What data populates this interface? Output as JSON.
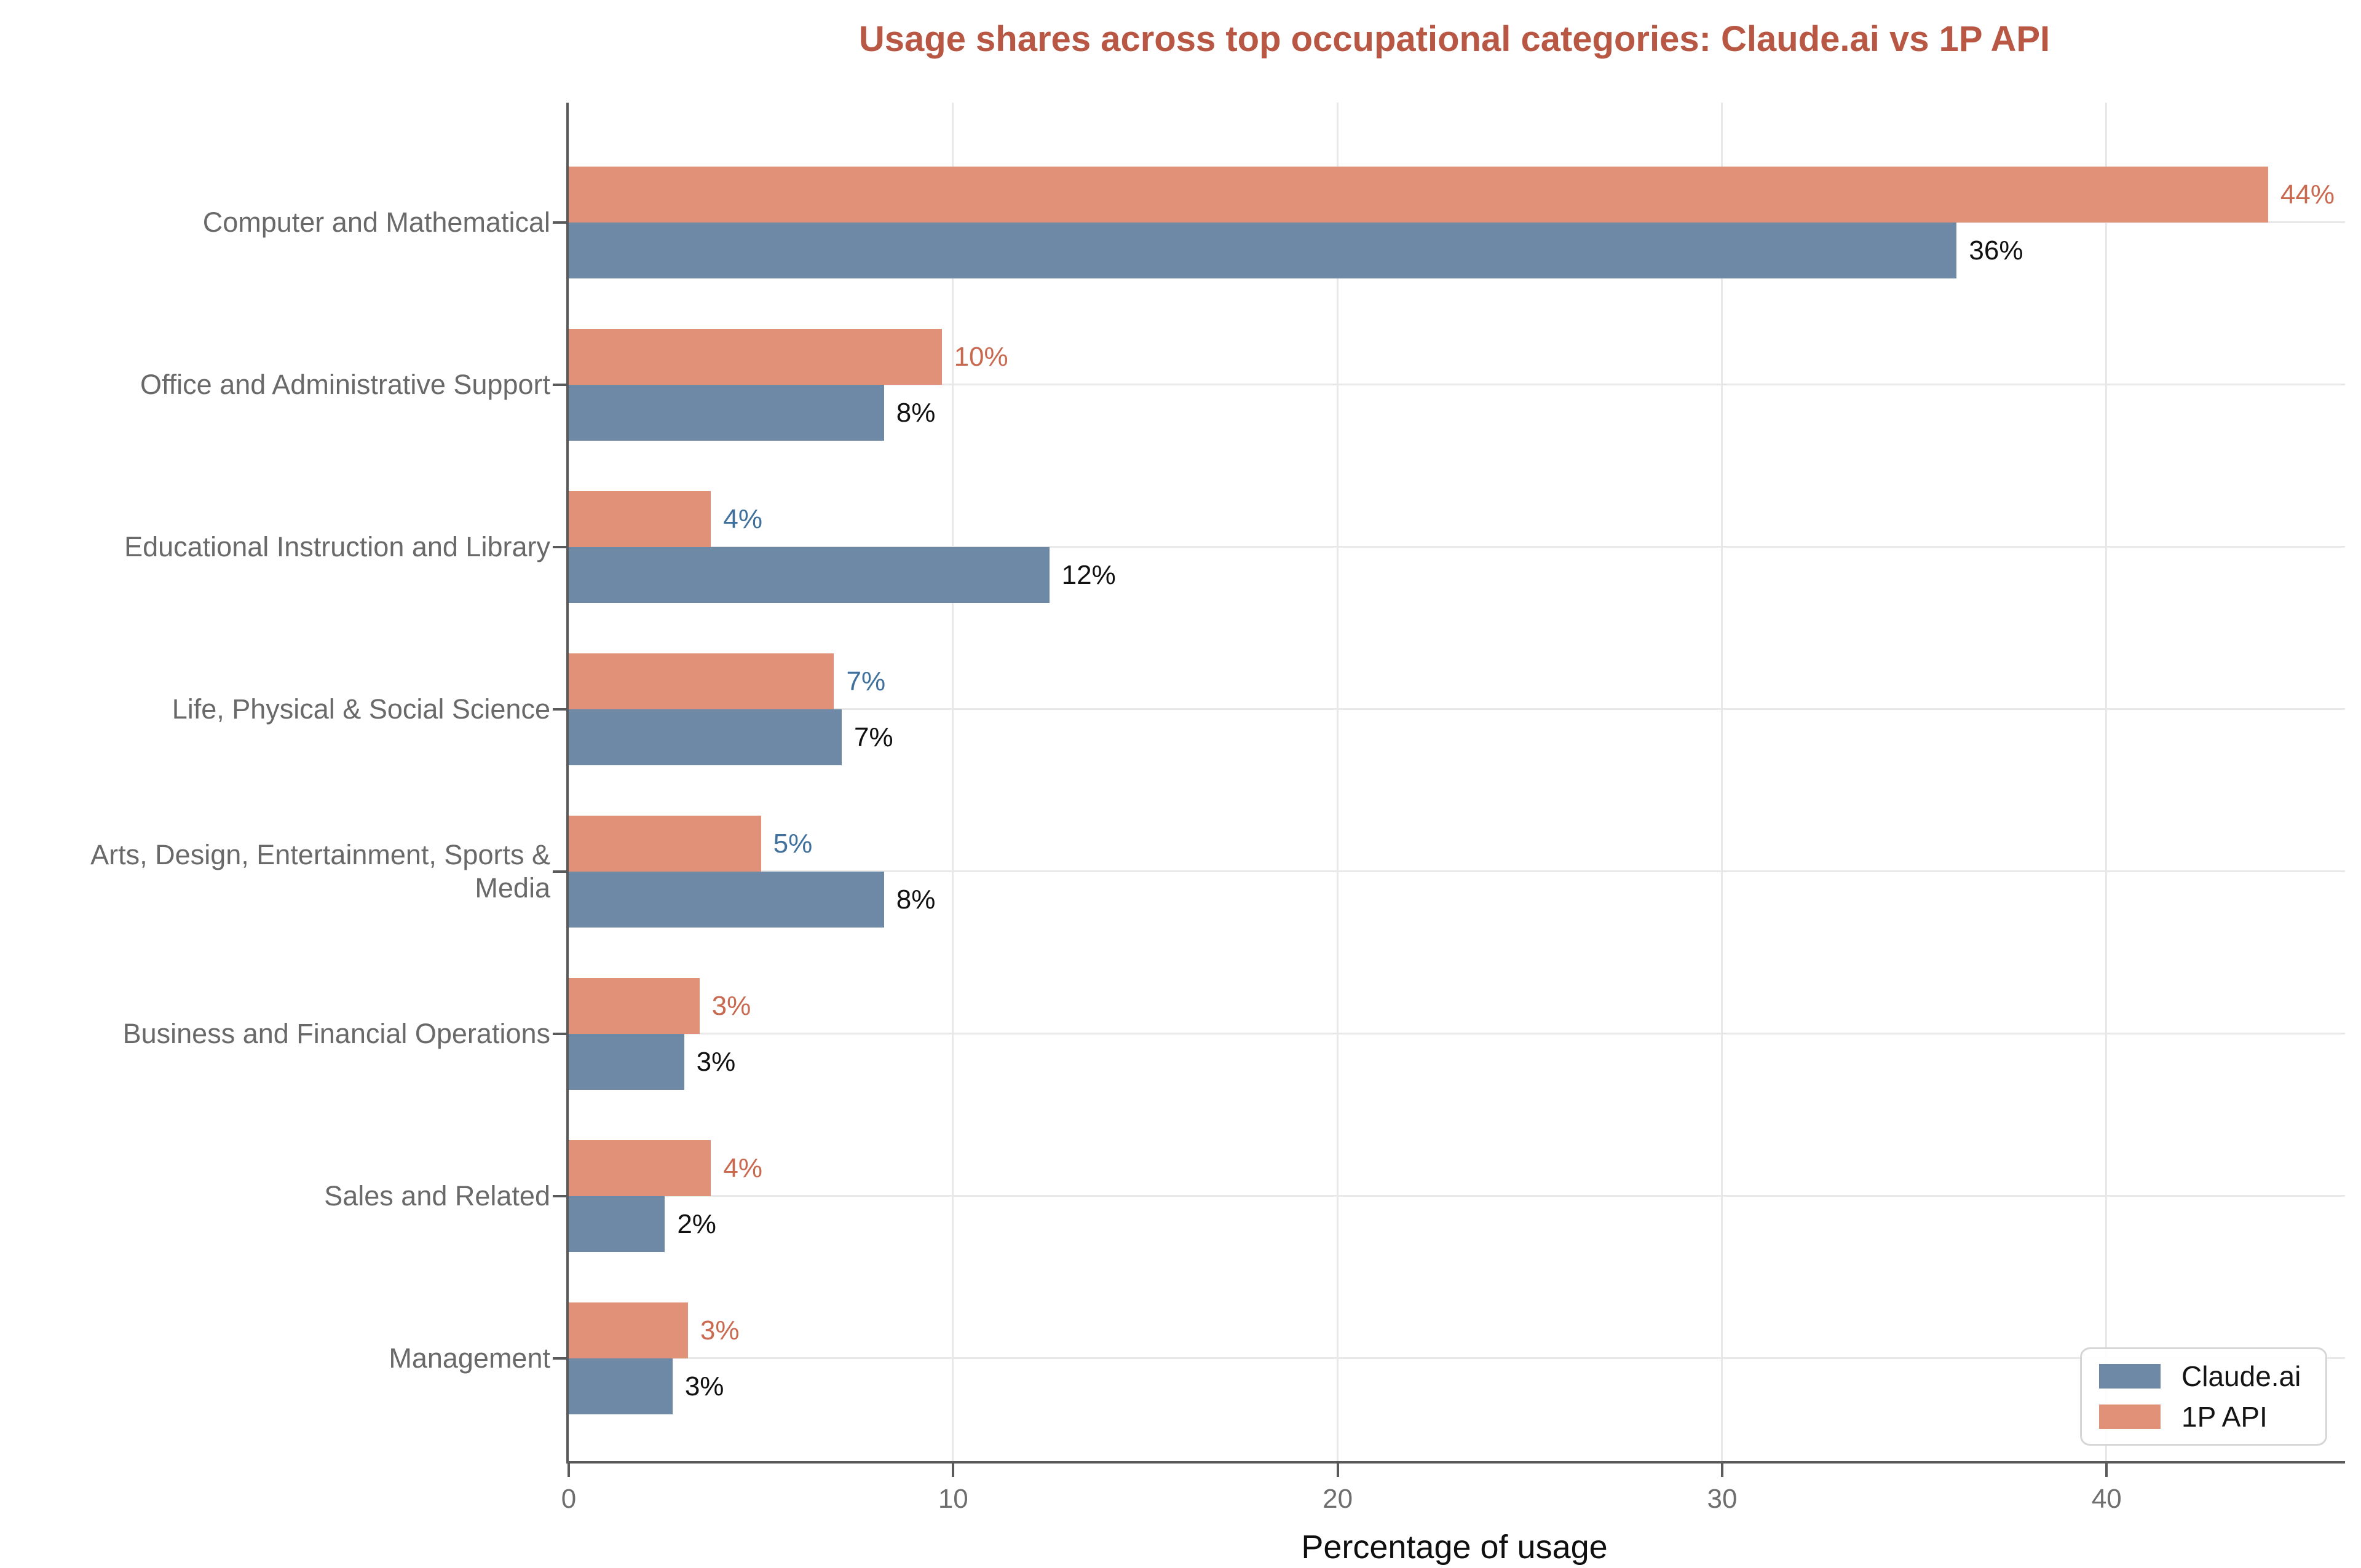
{
  "chart_data": {
    "type": "bar",
    "orientation": "horizontal",
    "title": "Usage shares across top occupational categories: Claude.ai vs 1P API",
    "xlabel": "Percentage of usage",
    "xlim": [
      0,
      46.2
    ],
    "xticks": [
      0,
      10,
      20,
      30,
      40
    ],
    "xtick_labels": [
      "0",
      "10",
      "20",
      "30",
      "40"
    ],
    "grid": true,
    "legend_position": "lower right",
    "categories": [
      "Computer and Mathematical",
      "Office and Administrative Support",
      "Educational Instruction and Library",
      "Life, Physical & Social Science",
      "Arts, Design, Entertainment, Sports & Media",
      "Business and Financial Operations",
      "Sales and Related",
      "Management"
    ],
    "series": [
      {
        "name": "Claude.ai",
        "color": "#6e89a6",
        "bar_position": "bottom",
        "values": [
          36,
          8,
          12,
          7,
          8,
          3,
          2,
          3
        ],
        "labels": [
          "36%",
          "8%",
          "12%",
          "7%",
          "8%",
          "3%",
          "2%",
          "3%"
        ],
        "label_colors": [
          "#111111",
          "#111111",
          "#111111",
          "#111111",
          "#111111",
          "#111111",
          "#111111",
          "#111111"
        ],
        "bar_lengths_pct": [
          36.1,
          8.2,
          12.5,
          7.1,
          8.2,
          3.0,
          2.5,
          2.7
        ]
      },
      {
        "name": "1P API",
        "color": "#e09178",
        "bar_position": "top",
        "values": [
          44,
          10,
          4,
          7,
          5,
          3,
          4,
          3
        ],
        "labels": [
          "44%",
          "10%",
          "4%",
          "7%",
          "5%",
          "3%",
          "4%",
          "3%"
        ],
        "label_colors": [
          "#c96a50",
          "#c96a50",
          "#40719c",
          "#40719c",
          "#40719c",
          "#c96a50",
          "#c96a50",
          "#c96a50"
        ],
        "bar_lengths_pct": [
          44.2,
          9.7,
          3.7,
          6.9,
          5.0,
          3.4,
          3.7,
          3.1
        ]
      }
    ],
    "colors": {
      "title": "#b75744",
      "axis_spine": "#5a5a5a",
      "gridline": "#e8e8e8",
      "tick_label": "#6e6e6e",
      "category_label": "#696969"
    }
  }
}
